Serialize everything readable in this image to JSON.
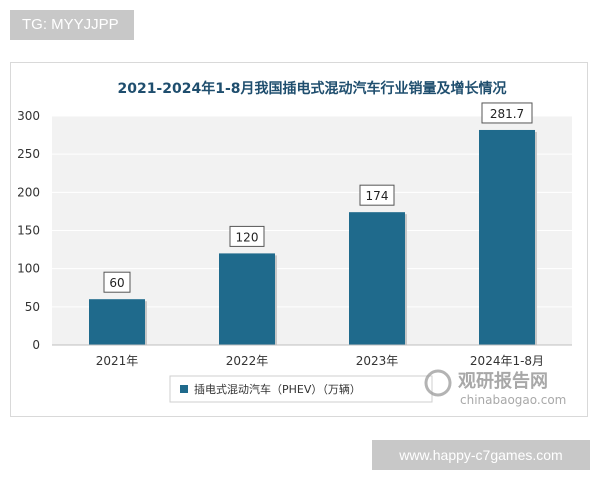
{
  "watermark_top": "TG: MYYJJPP",
  "watermark_bottom": "www.happy-c7games.com",
  "colors": {
    "bar": "#1f6a8c",
    "title": "#1f4e6e",
    "plot_bg": "#f2f2f2"
  },
  "logo": {
    "name": "观研报告网",
    "url": "chinabaogao.com"
  },
  "chart_data": {
    "type": "bar",
    "title": "2021-2024年1-8月我国插电式混动汽车行业销量及增长情况",
    "categories": [
      "2021年",
      "2022年",
      "2023年",
      "2024年1-8月"
    ],
    "series": [
      {
        "name": "插电式混动汽车（PHEV）（万辆）",
        "values": [
          60,
          120,
          174,
          281.7
        ]
      }
    ],
    "data_labels": [
      "60",
      "120",
      "174",
      "281.7"
    ],
    "ylim": [
      0,
      300
    ],
    "yticks": [
      0,
      50,
      100,
      150,
      200,
      250,
      300
    ],
    "grid": true,
    "legend_position": "bottom"
  }
}
